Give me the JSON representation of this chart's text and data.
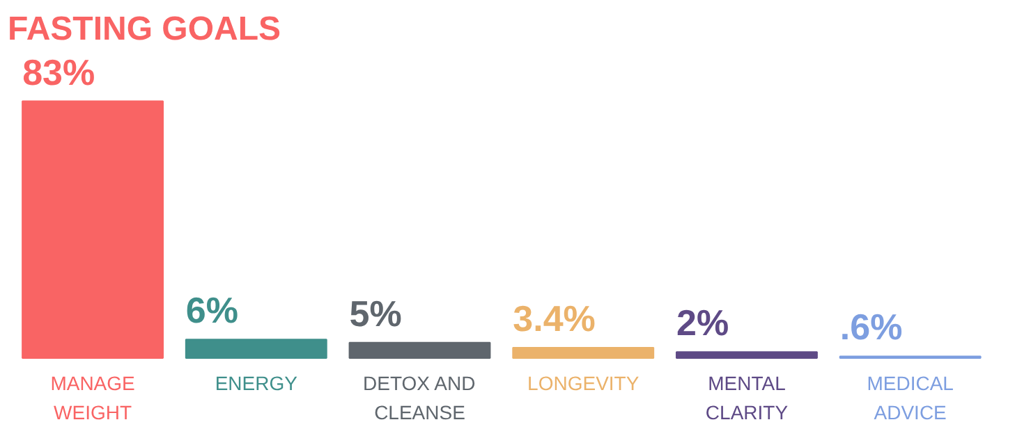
{
  "chart_data": {
    "type": "bar",
    "title": "FASTING GOALS",
    "categories": [
      "MANAGE WEIGHT",
      "ENERGY",
      "DETOX AND CLEANSE",
      "LONGEVITY",
      "MENTAL CLARITY",
      "MEDICAL ADVICE"
    ],
    "values": [
      83,
      6,
      5,
      3.4,
      2,
      0.6
    ],
    "value_labels": [
      "83%",
      "6%",
      "5%",
      "3.4%",
      "2%",
      ".6%"
    ],
    "colors": [
      "#f96464",
      "#3f8f8b",
      "#5f666d",
      "#ebb26a",
      "#5e4a86",
      "#7d9ee0"
    ],
    "grid": false
  }
}
